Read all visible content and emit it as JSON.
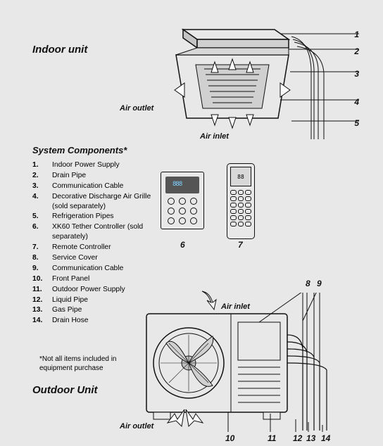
{
  "titles": {
    "indoor": "Indoor unit",
    "outdoor": "Outdoor Unit",
    "components": "System Components*"
  },
  "labels": {
    "air_outlet_top": "Air outlet",
    "air_inlet_top": "Air inlet",
    "air_inlet_bottom": "Air inlet",
    "air_outlet_bottom": "Air outlet"
  },
  "callouts": {
    "c1": "1",
    "c2": "2",
    "c3": "3",
    "c4": "4",
    "c5": "5",
    "c6": "6",
    "c7": "7",
    "c8": "8",
    "c9": "9",
    "c10": "10",
    "c11": "11",
    "c12": "12",
    "c13": "13",
    "c14": "14"
  },
  "components": [
    {
      "num": "1.",
      "text": "Indoor Power Supply"
    },
    {
      "num": "2.",
      "text": "Drain Pipe"
    },
    {
      "num": "3.",
      "text": "Communication Cable"
    },
    {
      "num": "4.",
      "text": "Decorative Discharge Air Grille (sold separately)"
    },
    {
      "num": "5.",
      "text": "Refrigeration Pipes"
    },
    {
      "num": "6.",
      "text": "XK60 Tether Controller (sold separately)"
    },
    {
      "num": "7.",
      "text": "Remote Controller"
    },
    {
      "num": "8.",
      "text": "Service Cover"
    },
    {
      "num": "9.",
      "text": "Communication Cable"
    },
    {
      "num": "10.",
      "text": "Front Panel"
    },
    {
      "num": "11.",
      "text": "Outdoor Power Supply"
    },
    {
      "num": "12.",
      "text": "Liquid Pipe"
    },
    {
      "num": "13.",
      "text": "Gas Pipe"
    },
    {
      "num": "14.",
      "text": "Drain Hose"
    }
  ],
  "footnote": "*Not all items included in equipment purchase",
  "styling": {
    "page_bg": "#e8e8e8",
    "text_color": "#111111",
    "stroke_color": "#111111",
    "display_7seg_color": "#7fd0ff",
    "title_fontsize_pt": 15,
    "section_fontsize_pt": 13,
    "label_fontsize_pt": 11,
    "body_fontsize_pt": 10.3,
    "footnote_fontsize_pt": 10,
    "font_family": "Arial, Helvetica, sans-serif",
    "arrow_fill": "#ffffff"
  },
  "remote_display": "88",
  "controller_display": "888"
}
